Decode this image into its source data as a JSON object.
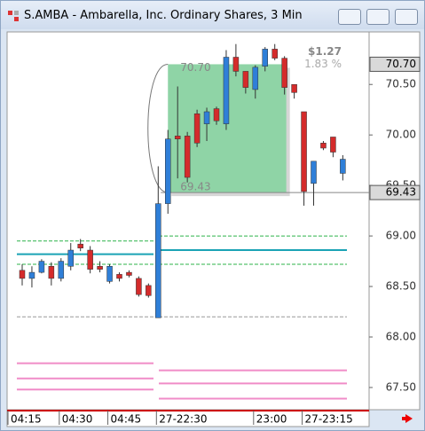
{
  "window_title": "S.AMBA - Ambarella, Inc. Ordinary Shares, 3 Min",
  "chart_data": {
    "type": "candlestick",
    "first_tick_label": "04:15",
    "categories": [
      null,
      null,
      null,
      null,
      "04:30",
      null,
      null,
      null,
      null,
      "04:45",
      null,
      null,
      null,
      null,
      "27-22:30",
      null,
      null,
      null,
      null,
      null,
      null,
      null,
      null,
      null,
      "23:00",
      null,
      null,
      null,
      null,
      "27-23:15",
      null,
      null,
      null,
      null
    ],
    "open": [
      68.66,
      68.58,
      68.64,
      68.7,
      68.58,
      68.7,
      68.92,
      68.86,
      68.7,
      68.55,
      68.62,
      68.64,
      68.58,
      68.51,
      68.19,
      69.32,
      69.99,
      69.99,
      70.21,
      70.11,
      70.26,
      70.11,
      70.77,
      70.63,
      70.45,
      70.68,
      70.85,
      70.76,
      70.5,
      70.23,
      69.52,
      69.92,
      69.98,
      69.62
    ],
    "high": [
      68.72,
      68.7,
      68.77,
      68.74,
      68.78,
      68.93,
      68.97,
      68.9,
      68.75,
      68.72,
      68.64,
      68.66,
      68.6,
      68.53,
      69.69,
      70.05,
      70.48,
      70.03,
      70.25,
      70.27,
      70.28,
      70.84,
      70.9,
      70.63,
      70.69,
      70.87,
      70.9,
      70.78,
      70.5,
      70.23,
      69.74,
      69.94,
      69.98,
      69.8
    ],
    "low": [
      68.51,
      68.49,
      68.63,
      68.51,
      68.55,
      68.66,
      68.85,
      68.63,
      68.64,
      68.53,
      68.55,
      68.59,
      68.4,
      68.39,
      68.19,
      69.22,
      69.57,
      69.53,
      69.88,
      69.94,
      70.1,
      70.05,
      70.58,
      70.41,
      70.36,
      70.63,
      70.74,
      70.4,
      70.36,
      69.3,
      69.3,
      69.85,
      69.78,
      69.55
    ],
    "close": [
      68.58,
      68.64,
      68.75,
      68.58,
      68.75,
      68.86,
      68.88,
      68.67,
      68.67,
      68.7,
      68.58,
      68.61,
      68.42,
      68.41,
      69.32,
      69.96,
      69.96,
      69.58,
      69.92,
      70.23,
      70.14,
      70.77,
      70.63,
      70.47,
      70.67,
      70.85,
      70.76,
      70.47,
      70.42,
      69.44,
      69.74,
      69.87,
      69.83,
      69.76
    ],
    "up_color": "#2f7fd8",
    "down_color": "#d42b2b",
    "ylim": [
      67.28,
      71.02
    ],
    "yticks": [
      {
        "value": 67.5,
        "label": "67.50"
      },
      {
        "value": 68,
        "label": "68.00"
      },
      {
        "value": 68.5,
        "label": "68.50"
      },
      {
        "value": 69,
        "label": "69.00"
      },
      {
        "value": 69.5,
        "label": "69.50"
      },
      {
        "value": 70,
        "label": "70.00"
      },
      {
        "value": 70.5,
        "label": "70.50"
      }
    ],
    "levels": [
      {
        "color": "#2cb34a",
        "dash": true,
        "left": 68.95,
        "right": 69.0
      },
      {
        "color": "#2cb34a",
        "dash": true,
        "left": 68.72,
        "right": 68.72
      },
      {
        "color": "#1aa3b5",
        "dash": false,
        "left": 68.82,
        "right": 68.86
      },
      {
        "color": "#999999",
        "dash": true,
        "left": 68.2,
        "right": 68.2
      },
      {
        "color": "#f08cc8",
        "dash": false,
        "left": 67.74,
        "right": 67.67
      },
      {
        "color": "#f08cc8",
        "dash": false,
        "left": 67.59,
        "right": 67.54
      },
      {
        "color": "#f08cc8",
        "dash": false,
        "left": 67.48,
        "right": 67.39
      }
    ],
    "measure": {
      "high": {
        "value": 70.7,
        "label": "70.70"
      },
      "low": {
        "value": 69.43,
        "label": "69.43"
      },
      "change": "$1.27",
      "percent": "1.83 %",
      "color": "#8fd4a6"
    }
  }
}
